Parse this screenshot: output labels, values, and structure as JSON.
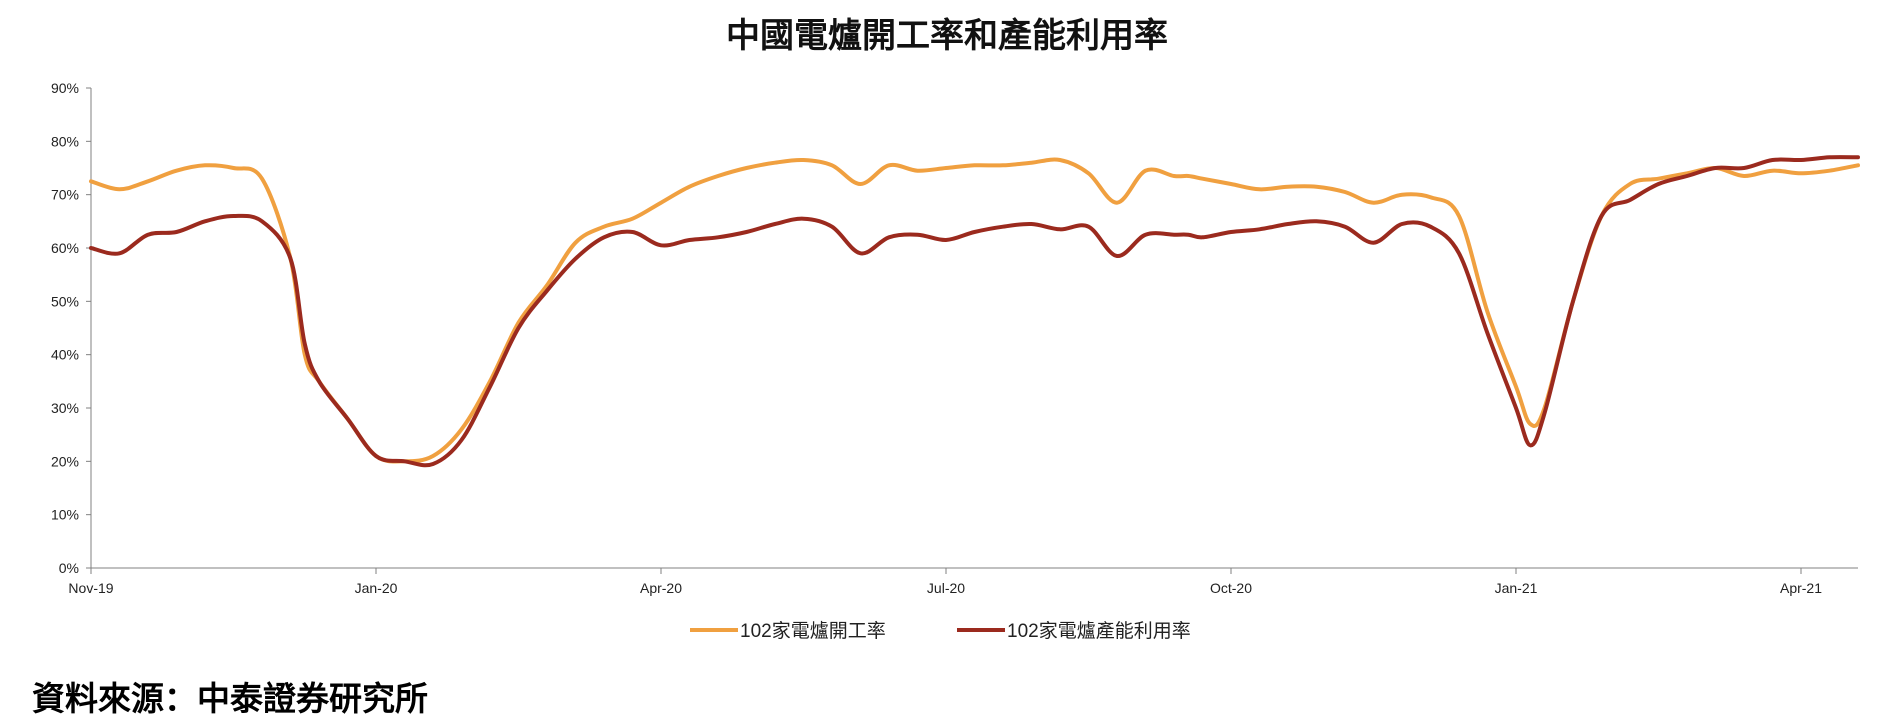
{
  "chart_data": {
    "type": "line",
    "title": "中國電爐開工率和產能利用率",
    "xlabel": "",
    "ylabel": "",
    "ylim": [
      0,
      90
    ],
    "y_ticks": [
      "0%",
      "10%",
      "20%",
      "30%",
      "40%",
      "50%",
      "60%",
      "70%",
      "80%",
      "90%"
    ],
    "x_tick_labels": [
      "Nov-19",
      "Jan-20",
      "Apr-20",
      "Jul-20",
      "Oct-20",
      "Jan-21",
      "Apr-21"
    ],
    "x_tick_positions_weeks": [
      0,
      10,
      20,
      30,
      40,
      50,
      60
    ],
    "x_range_weeks": [
      0,
      62
    ],
    "grid": false,
    "legend_position": "bottom",
    "series": [
      {
        "name": "102家電爐開工率",
        "color": "#F0A040",
        "x": [
          0,
          1,
          2,
          3,
          4,
          5,
          6,
          7,
          7.5,
          8,
          9,
          10,
          11,
          12,
          13,
          14,
          15,
          16,
          17,
          18,
          19,
          20,
          21,
          22,
          23,
          24,
          25,
          26,
          27,
          28,
          29,
          30,
          31,
          32,
          33,
          34,
          35,
          36,
          37,
          38,
          38.5,
          39,
          40,
          41,
          42,
          43,
          44,
          45,
          46,
          47,
          48,
          49,
          50,
          50.5,
          51,
          52,
          53,
          54,
          55,
          56,
          57,
          58,
          59,
          60,
          61,
          62
        ],
        "values": [
          72.5,
          71,
          72.5,
          74.5,
          75.5,
          75,
          73,
          58,
          40,
          35,
          28,
          21,
          20,
          21,
          26,
          35,
          46,
          53,
          61,
          64,
          65.5,
          68.5,
          71.5,
          73.5,
          75,
          76,
          76.5,
          75.5,
          72,
          75.5,
          74.5,
          75,
          75.5,
          75.5,
          76,
          76.5,
          74,
          68.5,
          74.5,
          73.5,
          73.5,
          73,
          72,
          71,
          71.5,
          71.5,
          70.5,
          68.5,
          70,
          69.5,
          66,
          48,
          34,
          27,
          30,
          50,
          66,
          72,
          73,
          74,
          75,
          73.5,
          74.5,
          74,
          74.5,
          75.5
        ]
      },
      {
        "name": "102家電爐產能利用率",
        "color": "#9B2A1E",
        "x": [
          0,
          1,
          2,
          3,
          4,
          5,
          6,
          7,
          7.5,
          8,
          9,
          10,
          11,
          12,
          13,
          14,
          15,
          16,
          17,
          18,
          19,
          20,
          21,
          22,
          23,
          24,
          25,
          26,
          27,
          28,
          29,
          30,
          31,
          32,
          33,
          34,
          35,
          36,
          37,
          38,
          38.5,
          39,
          40,
          41,
          42,
          43,
          44,
          45,
          46,
          47,
          48,
          49,
          50,
          50.5,
          51,
          52,
          53,
          54,
          55,
          56,
          57,
          58,
          59,
          60,
          61,
          62
        ],
        "values": [
          60,
          59,
          62.5,
          63,
          65,
          66,
          65,
          58,
          42,
          35,
          28,
          21,
          20,
          19.5,
          24,
          34,
          45,
          52,
          58,
          62,
          63,
          60.5,
          61.5,
          62,
          63,
          64.5,
          65.5,
          64,
          59,
          62,
          62.5,
          61.5,
          63,
          64,
          64.5,
          63.5,
          64,
          58.5,
          62.5,
          62.5,
          62.5,
          62,
          63,
          63.5,
          64.5,
          65,
          64,
          61,
          64.5,
          64,
          59,
          44,
          30,
          23,
          29,
          50,
          66,
          69,
          72,
          73.5,
          75,
          75,
          76.5,
          76.5,
          77,
          77
        ]
      }
    ]
  },
  "footer": {
    "source": "資料來源：中泰證券研究所"
  }
}
